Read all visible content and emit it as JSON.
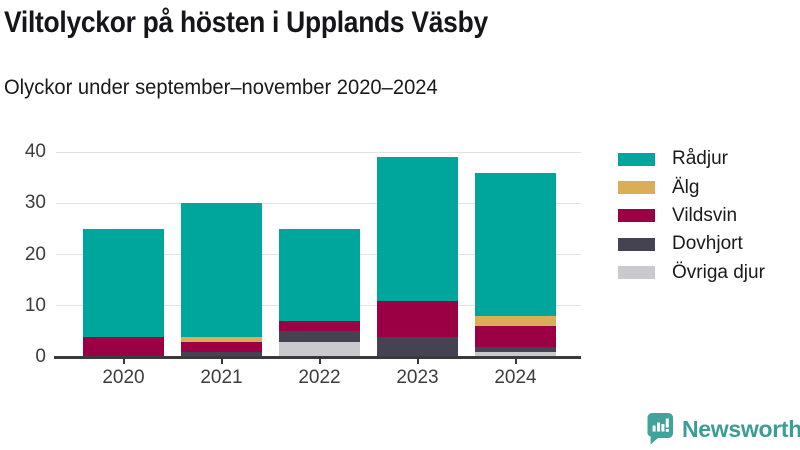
{
  "header": {
    "title": "Viltolyckor på hösten i Upplands Väsby",
    "subtitle": "Olyckor under september–november 2020–2024"
  },
  "chart_data": {
    "type": "bar",
    "stacked": true,
    "categories": [
      "2020",
      "2021",
      "2022",
      "2023",
      "2024"
    ],
    "series": [
      {
        "name": "Rådjur",
        "color": "#00a69c",
        "values": [
          21,
          26,
          18,
          28,
          28
        ]
      },
      {
        "name": "Älg",
        "color": "#d9ae56",
        "values": [
          0,
          1,
          0,
          0,
          2
        ]
      },
      {
        "name": "Vildsvin",
        "color": "#9c0044",
        "values": [
          4,
          2,
          2,
          7,
          4
        ]
      },
      {
        "name": "Dovhjort",
        "color": "#454351",
        "values": [
          0,
          1,
          2,
          4,
          1
        ]
      },
      {
        "name": "Övriga djur",
        "color": "#c9c9ce",
        "values": [
          0,
          0,
          3,
          0,
          1
        ]
      }
    ],
    "totals": [
      25,
      30,
      25,
      39,
      36
    ],
    "title": "Viltolyckor på hösten i Upplands Väsby",
    "subtitle": "Olyckor under september–november 2020–2024",
    "xlabel": "",
    "ylabel": "",
    "ylim": [
      0,
      40
    ],
    "yticks": [
      0,
      10,
      20,
      30,
      40
    ],
    "grid": true,
    "legend_position": "right",
    "axis_color": "#3a3a3a",
    "gridline_color": "#e2e2e2"
  },
  "footer": {
    "brand": "Newsworthy",
    "brand_color": "#3a9e97"
  }
}
